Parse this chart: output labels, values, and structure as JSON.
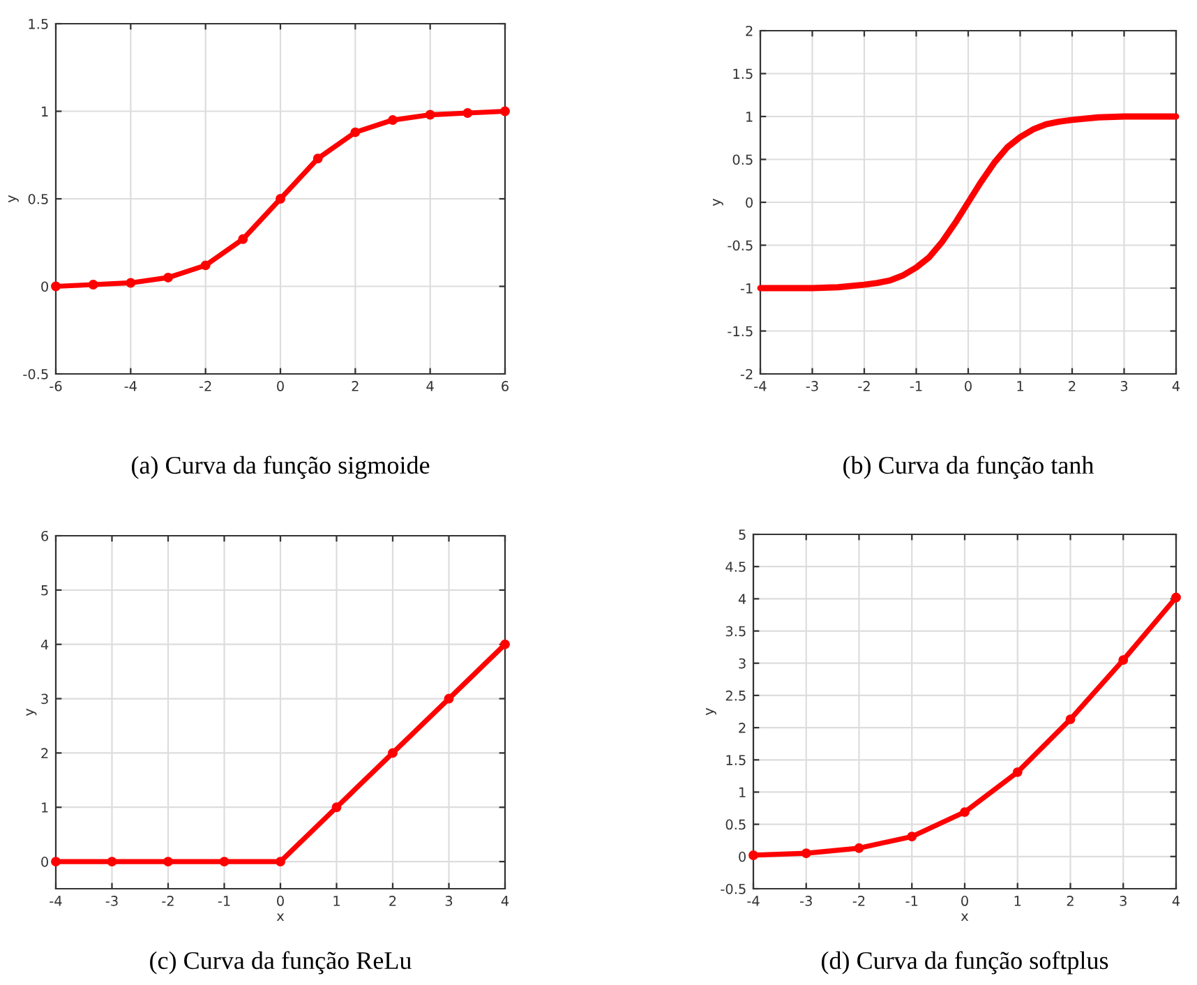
{
  "chart_data": [
    {
      "type": "line",
      "title": "(a) Curva da função sigmoide",
      "ylabel": "y",
      "x": [
        -6,
        -5,
        -4,
        -3,
        -2,
        -1,
        0,
        1,
        2,
        3,
        4,
        5,
        6
      ],
      "series": [
        {
          "color": "#ff0000",
          "values": [
            0.0,
            0.01,
            0.02,
            0.05,
            0.12,
            0.27,
            0.5,
            0.73,
            0.88,
            0.95,
            0.98,
            0.99,
            1.0
          ]
        }
      ],
      "xlim": [
        -6,
        6
      ],
      "ylim": [
        -0.5,
        1.5
      ],
      "xticks": [
        -6,
        -4,
        -2,
        0,
        2,
        4,
        6
      ],
      "yticks": [
        -0.5,
        0,
        0.5,
        1,
        1.5
      ],
      "grid": true,
      "marker": "circle",
      "line_style": "solid"
    },
    {
      "type": "line",
      "title": "(b) Curva da função tanh",
      "ylabel": "y",
      "x": [
        -4,
        -3.5,
        -3,
        -2.5,
        -2,
        -1.75,
        -1.5,
        -1.25,
        -1,
        -0.75,
        -0.5,
        -0.25,
        0,
        0.25,
        0.5,
        0.75,
        1,
        1.25,
        1.5,
        1.75,
        2,
        2.5,
        3,
        3.5,
        4
      ],
      "series": [
        {
          "color": "#ff0000",
          "values": [
            -1.0,
            -1.0,
            -1.0,
            -0.99,
            -0.96,
            -0.94,
            -0.91,
            -0.85,
            -0.76,
            -0.64,
            -0.46,
            -0.24,
            0,
            0.24,
            0.46,
            0.64,
            0.76,
            0.85,
            0.91,
            0.94,
            0.96,
            0.99,
            1.0,
            1.0,
            1.0
          ]
        }
      ],
      "xlim": [
        -4,
        4
      ],
      "ylim": [
        -2,
        2
      ],
      "xticks": [
        -4,
        -3,
        -2,
        -1,
        0,
        1,
        2,
        3,
        4
      ],
      "yticks": [
        -2,
        -1.5,
        -1,
        -0.5,
        0,
        0.5,
        1,
        1.5,
        2
      ],
      "grid": true,
      "line_style": "solid"
    },
    {
      "type": "line",
      "title": "(c) Curva da função ReLu",
      "xlabel": "x",
      "ylabel": "y",
      "x": [
        -4,
        -3,
        -2,
        -1,
        0,
        1,
        2,
        3,
        4
      ],
      "series": [
        {
          "color": "#ff0000",
          "values": [
            0,
            0,
            0,
            0,
            0,
            1,
            2,
            3,
            4
          ]
        }
      ],
      "xlim": [
        -4,
        4
      ],
      "ylim": [
        -0.5,
        6
      ],
      "xticks": [
        -4,
        -3,
        -2,
        -1,
        0,
        1,
        2,
        3,
        4
      ],
      "yticks": [
        0,
        1,
        2,
        3,
        4,
        5,
        6
      ],
      "grid": true,
      "marker": "circle",
      "line_style": "solid"
    },
    {
      "type": "line",
      "title": "(d) Curva da função softplus",
      "xlabel": "x",
      "ylabel": "y",
      "x": [
        -4,
        -3,
        -2,
        -1,
        0,
        1,
        2,
        3,
        4
      ],
      "series": [
        {
          "color": "#ff0000",
          "values": [
            0.02,
            0.05,
            0.13,
            0.31,
            0.69,
            1.31,
            2.13,
            3.05,
            4.02
          ]
        }
      ],
      "xlim": [
        -4,
        4
      ],
      "ylim": [
        -0.5,
        5
      ],
      "xticks": [
        -4,
        -3,
        -2,
        -1,
        0,
        1,
        2,
        3,
        4
      ],
      "yticks": [
        -0.5,
        0,
        0.5,
        1,
        1.5,
        2,
        2.5,
        3,
        3.5,
        4,
        4.5,
        5
      ],
      "grid": true,
      "marker": "circle",
      "line_style": "solid"
    }
  ]
}
